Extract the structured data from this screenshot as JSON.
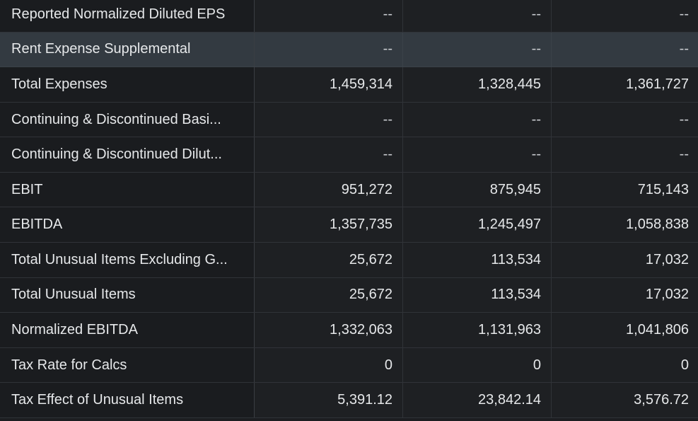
{
  "rows": [
    {
      "label": "Reported Normalized Diluted EPS",
      "values": [
        "--",
        "--",
        "--"
      ],
      "highlight": false
    },
    {
      "label": "Rent Expense Supplemental",
      "values": [
        "--",
        "--",
        "--"
      ],
      "highlight": true
    },
    {
      "label": "Total Expenses",
      "values": [
        "1,459,314",
        "1,328,445",
        "1,361,727"
      ],
      "highlight": false
    },
    {
      "label": "Continuing & Discontinued Basi...",
      "values": [
        "--",
        "--",
        "--"
      ],
      "highlight": false
    },
    {
      "label": "Continuing & Discontinued Dilut...",
      "values": [
        "--",
        "--",
        "--"
      ],
      "highlight": false
    },
    {
      "label": "EBIT",
      "values": [
        "951,272",
        "875,945",
        "715,143"
      ],
      "highlight": false
    },
    {
      "label": "EBITDA",
      "values": [
        "1,357,735",
        "1,245,497",
        "1,058,838"
      ],
      "highlight": false
    },
    {
      "label": "Total Unusual Items Excluding G...",
      "values": [
        "25,672",
        "113,534",
        "17,032"
      ],
      "highlight": false
    },
    {
      "label": "Total Unusual Items",
      "values": [
        "25,672",
        "113,534",
        "17,032"
      ],
      "highlight": false
    },
    {
      "label": "Normalized EBITDA",
      "values": [
        "1,332,063",
        "1,131,963",
        "1,041,806"
      ],
      "highlight": false
    },
    {
      "label": "Tax Rate for Calcs",
      "values": [
        "0",
        "0",
        "0"
      ],
      "highlight": false
    },
    {
      "label": "Tax Effect of Unusual Items",
      "values": [
        "5,391.12",
        "23,842.14",
        "3,576.72"
      ],
      "highlight": false
    }
  ]
}
